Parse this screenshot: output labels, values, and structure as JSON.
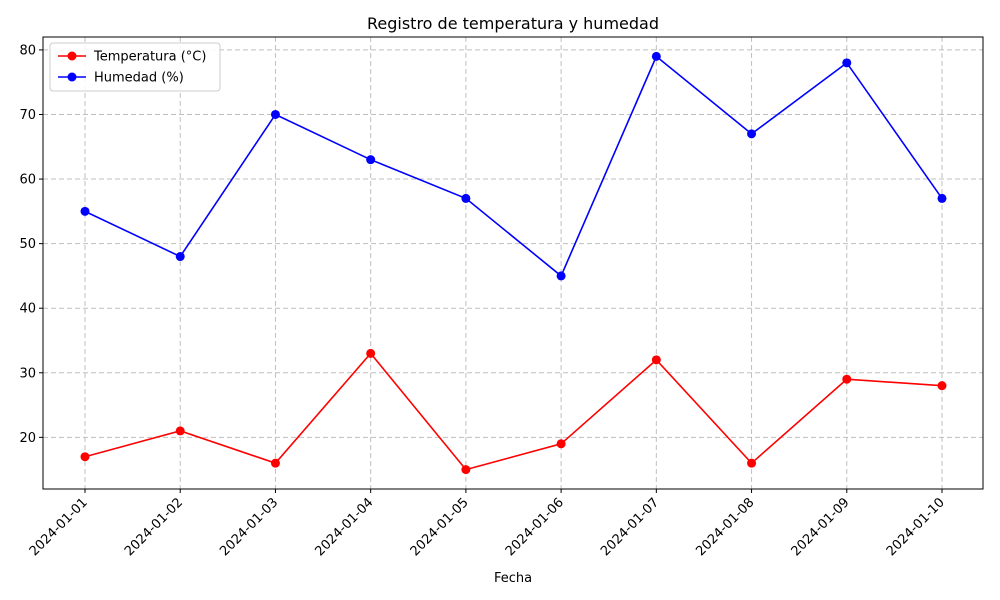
{
  "chart_data": {
    "type": "line",
    "title": "Registro de temperatura y humedad",
    "xlabel": "Fecha",
    "ylabel": "",
    "categories": [
      "2024-01-01",
      "2024-01-02",
      "2024-01-03",
      "2024-01-04",
      "2024-01-05",
      "2024-01-06",
      "2024-01-07",
      "2024-01-08",
      "2024-01-09",
      "2024-01-10"
    ],
    "yticks": [
      20,
      30,
      40,
      50,
      60,
      70,
      80
    ],
    "ylim": [
      12,
      82
    ],
    "grid": true,
    "legend_position": "top-left",
    "series": [
      {
        "name": "Temperatura (°C)",
        "color": "#ff0000",
        "values": [
          17,
          21,
          16,
          33,
          15,
          19,
          32,
          16,
          29,
          28
        ]
      },
      {
        "name": "Humedad (%)",
        "color": "#0000ff",
        "values": [
          55,
          48,
          70,
          63,
          57,
          45,
          79,
          67,
          78,
          57
        ]
      }
    ]
  }
}
